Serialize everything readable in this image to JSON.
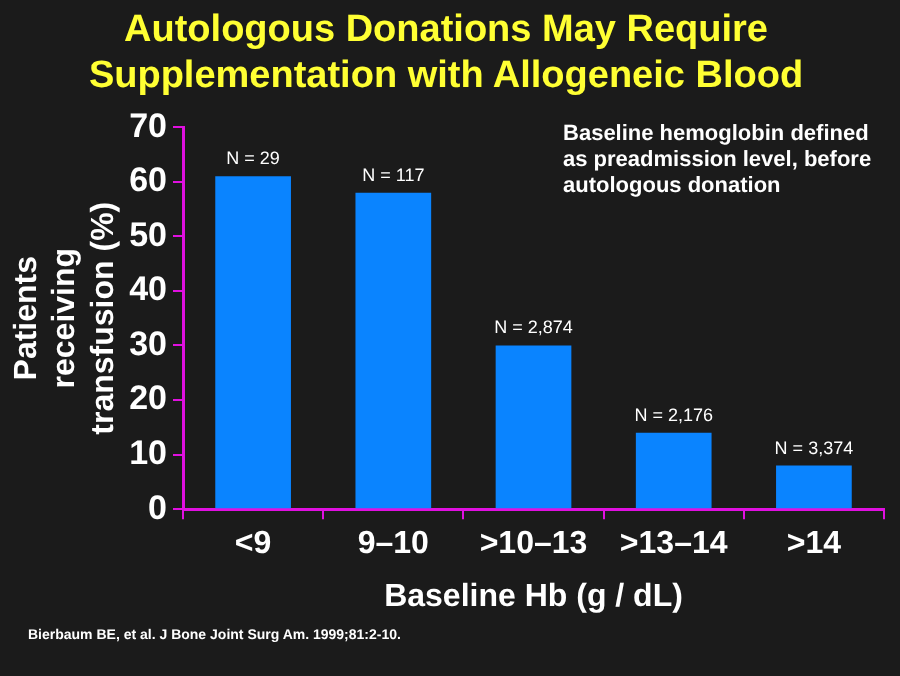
{
  "chart_data": {
    "type": "bar",
    "title": [
      "Autologous Donations May Require",
      "Supplementation with Allogeneic Blood"
    ],
    "xlabel": "Baseline Hb (g / dL)",
    "ylabel": "Patients receiving transfusion (%)",
    "categories": [
      "<9",
      "9–10",
      ">10–13",
      ">13–14",
      ">14"
    ],
    "values": [
      61,
      58,
      30,
      14,
      8
    ],
    "color": "#0a84ff",
    "ylim": [
      0,
      70
    ],
    "yticks": [
      0,
      10,
      20,
      30,
      40,
      50,
      60,
      70
    ],
    "grid": false,
    "legend": false,
    "annotations": [
      {
        "text": "N = 29",
        "x": "<9",
        "y": 61
      },
      {
        "text": "N = 117",
        "x": "9–10",
        "y": 58
      },
      {
        "text": "N = 2,874",
        "x": ">10–13",
        "y": 30
      },
      {
        "text": "N = 2,176",
        "x": ">13–14",
        "y": 14
      },
      {
        "text": "N = 3,374",
        "x": ">14",
        "y": 8
      },
      "Baseline hemoglobin defined as preadmission level, before autologous donation",
      "Bierbaum BE, et al. J Bone Joint Surg Am. 1999;81:2-10."
    ]
  }
}
